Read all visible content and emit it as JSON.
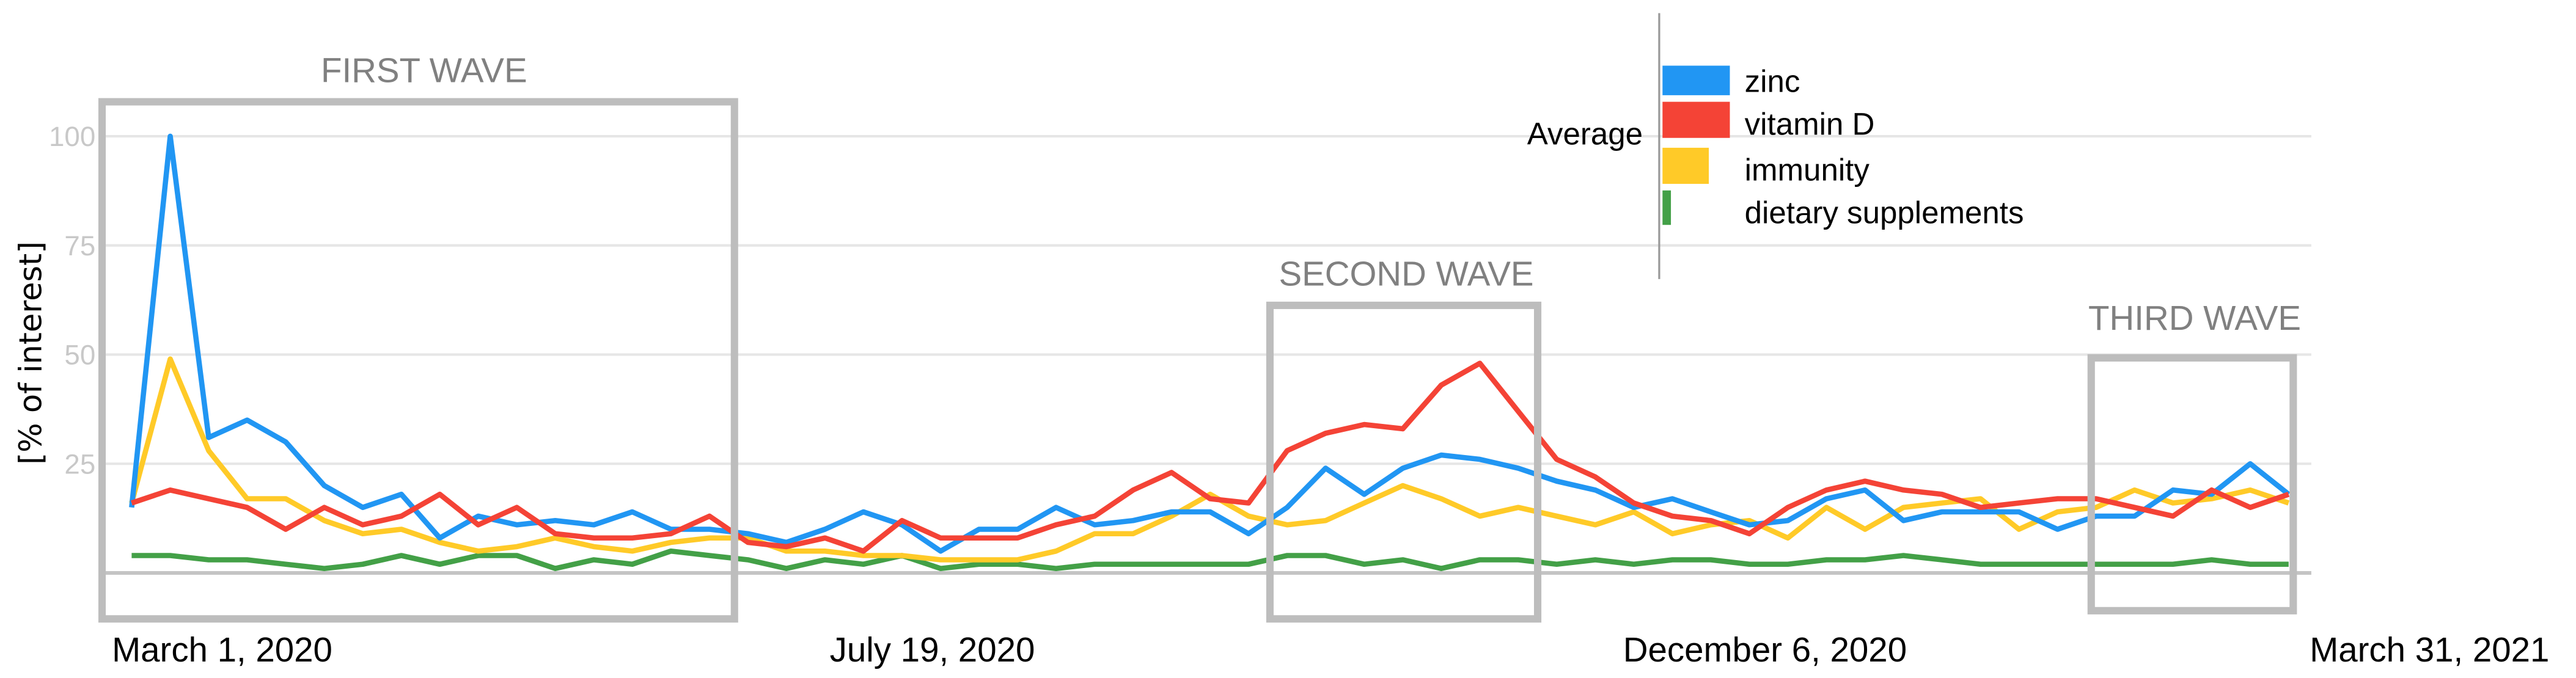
{
  "chart_data": {
    "type": "line",
    "ylabel": "[% of interest]",
    "ylim": [
      0,
      100
    ],
    "yticks": [
      "25",
      "50",
      "75",
      "100"
    ],
    "ytick_values": [
      25,
      50,
      75,
      100
    ],
    "grid": true,
    "x_start": "March 1, 2020",
    "x_frequency": "weekly",
    "xtick_labels": [
      "March 1, 2020",
      "July 19, 2020",
      "December 6, 2020",
      "March 31, 2021"
    ],
    "legend": {
      "title": "Average",
      "placement": "top-right",
      "entries": [
        "zinc",
        "vitamin D",
        "immunity",
        "dietary supplements"
      ]
    },
    "series": [
      {
        "name": "zinc",
        "color": "#2196F3",
        "average": 16,
        "values": [
          15,
          100,
          31,
          35,
          30,
          20,
          15,
          18,
          8,
          13,
          11,
          12,
          11,
          14,
          10,
          10,
          9,
          7,
          10,
          14,
          11,
          5,
          10,
          10,
          15,
          11,
          12,
          14,
          14,
          9,
          15,
          24,
          18,
          24,
          27,
          26,
          24,
          21,
          19,
          15,
          17,
          14,
          11,
          12,
          17,
          19,
          12,
          14,
          14,
          14,
          10,
          13,
          13,
          19,
          18,
          25,
          18
        ]
      },
      {
        "name": "vitamin D",
        "color": "#F44336",
        "average": 16,
        "values": [
          16,
          19,
          17,
          15,
          10,
          15,
          11,
          13,
          18,
          11,
          15,
          9,
          8,
          8,
          9,
          13,
          7,
          6,
          8,
          5,
          12,
          8,
          8,
          8,
          11,
          13,
          19,
          23,
          17,
          16,
          28,
          32,
          34,
          33,
          43,
          48,
          37,
          26,
          22,
          16,
          13,
          12,
          9,
          15,
          19,
          21,
          19,
          18,
          15,
          16,
          17,
          17,
          15,
          13,
          19,
          15,
          18
        ]
      },
      {
        "name": "immunity",
        "color": "#FFCA28",
        "average": 11,
        "values": [
          16,
          49,
          28,
          17,
          17,
          12,
          9,
          10,
          7,
          5,
          6,
          8,
          6,
          5,
          7,
          8,
          8,
          5,
          5,
          4,
          4,
          3,
          3,
          3,
          5,
          9,
          9,
          13,
          18,
          13,
          11,
          12,
          16,
          20,
          17,
          13,
          15,
          13,
          11,
          14,
          9,
          11,
          12,
          8,
          15,
          10,
          15,
          16,
          17,
          10,
          14,
          15,
          19,
          16,
          17,
          19,
          16
        ]
      },
      {
        "name": "dietary supplements",
        "color": "#43A047",
        "average": 2,
        "values": [
          4,
          4,
          3,
          3,
          2,
          1,
          2,
          4,
          2,
          4,
          4,
          1,
          3,
          2,
          5,
          4,
          3,
          1,
          3,
          2,
          4,
          1,
          2,
          2,
          1,
          2,
          2,
          2,
          2,
          2,
          4,
          4,
          2,
          3,
          1,
          3,
          3,
          2,
          3,
          2,
          3,
          3,
          2,
          2,
          3,
          3,
          4,
          3,
          2,
          2,
          2,
          2,
          2,
          2,
          3,
          2,
          2
        ]
      }
    ],
    "annotations": [
      {
        "label": "FIRST WAVE",
        "from_index": 0,
        "to_index": 16
      },
      {
        "label": "SECOND WAVE",
        "from_index": 30,
        "to_index": 36
      },
      {
        "label": "THIRD WAVE",
        "from_index": 52,
        "to_index": 56
      }
    ],
    "annotation_color": "#BDBDBD"
  }
}
